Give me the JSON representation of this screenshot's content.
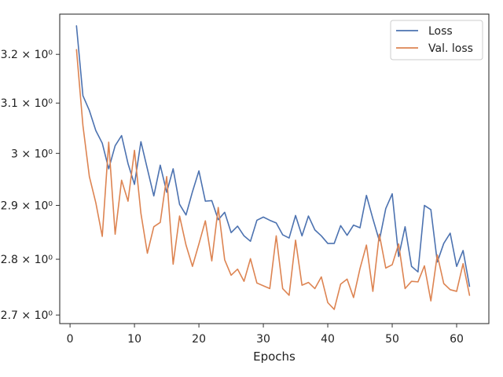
{
  "chart_data": {
    "type": "line",
    "title": "",
    "xlabel": "Epochs",
    "ylabel": "",
    "xlim": [
      -1.6,
      65
    ],
    "ylim": [
      2.685,
      3.285
    ],
    "y_scale": "log",
    "grid": false,
    "legend_position": "top-right",
    "x_ticks": [
      0,
      10,
      20,
      30,
      40,
      50,
      60
    ],
    "x_tick_labels": [
      "0",
      "10",
      "20",
      "30",
      "40",
      "50",
      "60"
    ],
    "y_ticks": [
      2.7,
      2.8,
      2.9,
      3.0,
      3.1,
      3.2
    ],
    "y_tick_labels": [
      "2.7 × 10⁰",
      "2.8 × 10⁰",
      "2.9 × 10⁰",
      "3 × 10⁰",
      "3.1 × 10⁰",
      "3.2 × 10⁰"
    ],
    "x": [
      1,
      2,
      3,
      4,
      5,
      6,
      7,
      8,
      9,
      10,
      11,
      12,
      13,
      14,
      15,
      16,
      17,
      18,
      19,
      20,
      21,
      22,
      23,
      24,
      25,
      26,
      27,
      28,
      29,
      30,
      31,
      32,
      33,
      34,
      35,
      36,
      37,
      38,
      39,
      40,
      41,
      42,
      43,
      44,
      45,
      46,
      47,
      48,
      49,
      50,
      51,
      52,
      53,
      54,
      55,
      56,
      57,
      58,
      59,
      60,
      61,
      62
    ],
    "series": [
      {
        "name": "Loss",
        "color": "#4c72b0",
        "values": [
          3.26,
          3.115,
          3.085,
          3.045,
          3.02,
          2.97,
          3.015,
          3.035,
          2.98,
          2.94,
          3.023,
          2.97,
          2.918,
          2.977,
          2.925,
          2.97,
          2.902,
          2.882,
          2.926,
          2.966,
          2.908,
          2.909,
          2.873,
          2.887,
          2.849,
          2.861,
          2.843,
          2.833,
          2.872,
          2.878,
          2.872,
          2.867,
          2.845,
          2.839,
          2.881,
          2.843,
          2.88,
          2.854,
          2.843,
          2.829,
          2.829,
          2.862,
          2.844,
          2.863,
          2.858,
          2.919,
          2.875,
          2.834,
          2.894,
          2.922,
          2.805,
          2.86,
          2.787,
          2.777,
          2.9,
          2.892,
          2.795,
          2.829,
          2.848,
          2.787,
          2.816,
          2.751
        ]
      },
      {
        "name": "Val. loss",
        "color": "#dd8452",
        "values": [
          3.21,
          3.055,
          2.955,
          2.905,
          2.842,
          3.022,
          2.846,
          2.948,
          2.908,
          3.006,
          2.885,
          2.811,
          2.86,
          2.868,
          2.955,
          2.791,
          2.88,
          2.826,
          2.787,
          2.828,
          2.871,
          2.797,
          2.896,
          2.799,
          2.771,
          2.782,
          2.76,
          2.801,
          2.757,
          2.752,
          2.747,
          2.843,
          2.747,
          2.735,
          2.835,
          2.753,
          2.758,
          2.747,
          2.768,
          2.722,
          2.71,
          2.755,
          2.764,
          2.731,
          2.783,
          2.826,
          2.742,
          2.846,
          2.784,
          2.79,
          2.828,
          2.747,
          2.76,
          2.759,
          2.788,
          2.725,
          2.808,
          2.756,
          2.745,
          2.742,
          2.792,
          2.735
        ]
      }
    ]
  }
}
